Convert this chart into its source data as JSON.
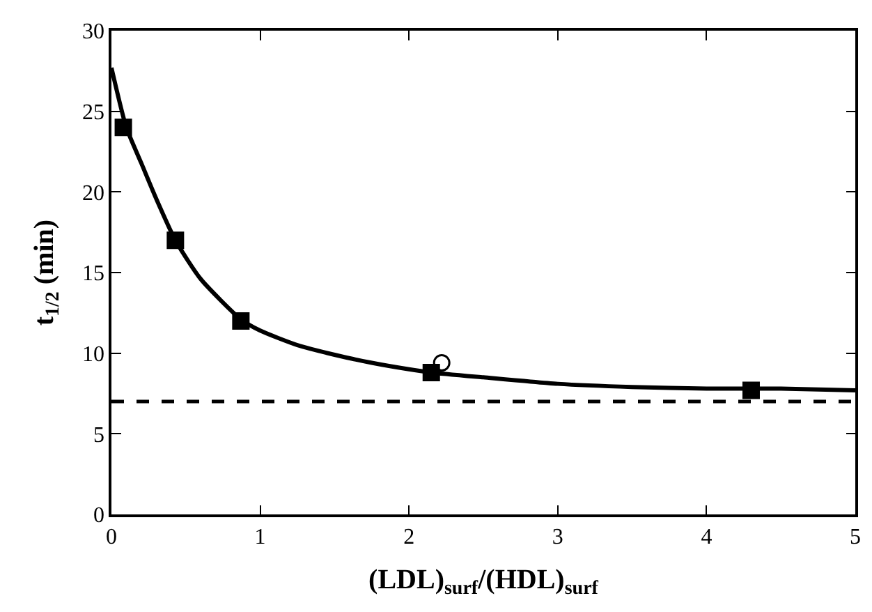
{
  "chart_data": {
    "type": "scatter",
    "xlabel": "(LDL)$_{surf}$/(HDL)$_{surf}$",
    "ylabel": "t$_{1/2}$ (min)",
    "xlim": [
      0,
      5
    ],
    "xticks": [
      0,
      1,
      2,
      3,
      4,
      5
    ],
    "ylim": [
      0,
      30
    ],
    "yticks": [
      0,
      5,
      10,
      15,
      20,
      25,
      30
    ],
    "series": [
      {
        "marker": "square",
        "color": "#000000",
        "x": [
          0.08,
          0.43,
          0.87,
          2.15,
          4.3
        ],
        "values": [
          24.0,
          17.0,
          12.0,
          8.8,
          7.7
        ]
      },
      {
        "marker": "circle",
        "color": "#000000",
        "x": [
          2.22
        ],
        "values": [
          9.4
        ]
      },
      {
        "type": "line",
        "marker": "none",
        "line_style": "solid",
        "color": "#000000",
        "x": [
          0,
          0.1,
          0.2,
          0.3,
          0.43,
          0.6,
          0.87,
          1.0,
          1.25,
          1.5,
          1.75,
          2.0,
          2.15,
          2.5,
          3.0,
          3.5,
          4.0,
          4.5,
          5.0
        ],
        "values": [
          27.7,
          24.0,
          21.8,
          19.6,
          17.0,
          14.6,
          12.1,
          11.4,
          10.5,
          9.9,
          9.4,
          9.0,
          8.8,
          8.5,
          8.1,
          7.9,
          7.8,
          7.8,
          7.7
        ]
      }
    ],
    "ref_lines": [
      {
        "axis": "y",
        "value": 7.0,
        "label": null,
        "line_style": "dashed",
        "color": "#000000"
      }
    ]
  }
}
